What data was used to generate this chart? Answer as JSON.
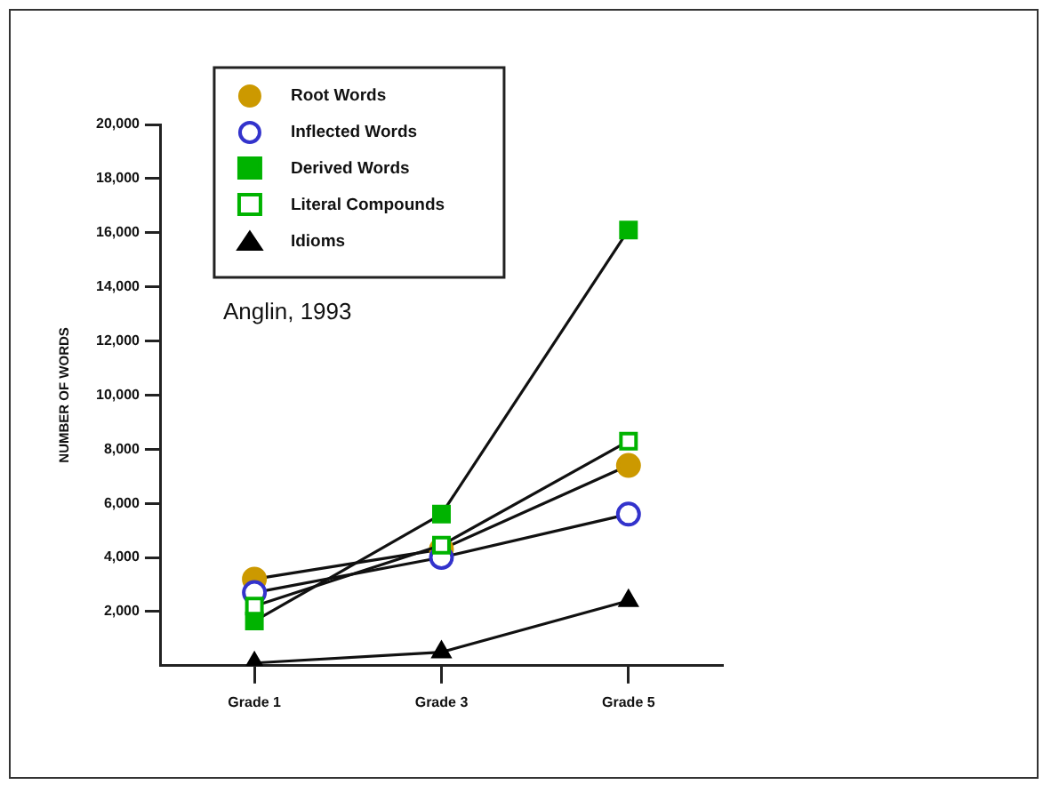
{
  "chart_data": {
    "type": "line",
    "ylabel": "NUMBER OF WORDS",
    "annotations": [
      "Anglin, 1993"
    ],
    "categories": [
      "Grade 1",
      "Grade 3",
      "Grade 5"
    ],
    "series": [
      {
        "name": "Root Words",
        "color": "#cc9900",
        "marker": "circle",
        "values": [
          3200,
          4300,
          7400
        ]
      },
      {
        "name": "Inflected Words",
        "color": "#3333cc",
        "marker": "circle",
        "values": [
          2700,
          4000,
          5600
        ]
      },
      {
        "name": "Derived Words",
        "color": "#00b300",
        "marker": "square",
        "values": [
          1650,
          5600,
          16100
        ]
      },
      {
        "name": "Literal Compounds",
        "color": "#00b300",
        "marker": "square",
        "values": [
          2200,
          4450,
          8300
        ]
      },
      {
        "name": "Idioms",
        "color": "#000000",
        "marker": "triangle",
        "values": [
          100,
          500,
          2400
        ]
      }
    ],
    "ylim": [
      0,
      20000
    ],
    "yticks": [
      {
        "value": 2000,
        "label": "2,000"
      },
      {
        "value": 4000,
        "label": "4,000"
      },
      {
        "value": 6000,
        "label": "6,000"
      },
      {
        "value": 8000,
        "label": "8,000"
      },
      {
        "value": 10000,
        "label": "10,000"
      },
      {
        "value": 12000,
        "label": "12,000"
      },
      {
        "value": 14000,
        "label": "14,000"
      },
      {
        "value": 16000,
        "label": "16,000"
      },
      {
        "value": 18000,
        "label": "18,000"
      },
      {
        "value": 20000,
        "label": "20,000"
      }
    ],
    "grid": false,
    "legend": "top left"
  }
}
